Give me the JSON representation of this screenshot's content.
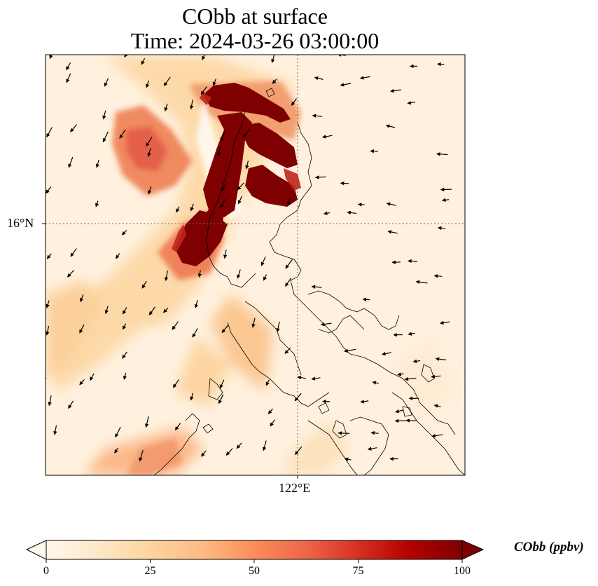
{
  "figure": {
    "title_line1": "CObb at surface",
    "title_line2": "Time: 2024-03-26 03:00:00",
    "lat_label": "16°N",
    "lon_label": "122°E"
  },
  "colorbar": {
    "label": "CObb (ppbv)",
    "ticks": [
      "0",
      "25",
      "50",
      "75",
      "100"
    ],
    "min": 0,
    "max": 100,
    "extend": "both",
    "colormap": "OrRd",
    "colors": [
      "#fff7ec",
      "#fee8c8",
      "#fdd49e",
      "#fdbb84",
      "#fc8d59",
      "#ef6548",
      "#d7301f",
      "#b30000",
      "#7f0000"
    ]
  },
  "field": {
    "variable": "CObb",
    "units": "ppbv",
    "max_concentration_region": "western Luzon coast near 16–17°N",
    "has_wind_vectors": true
  }
}
